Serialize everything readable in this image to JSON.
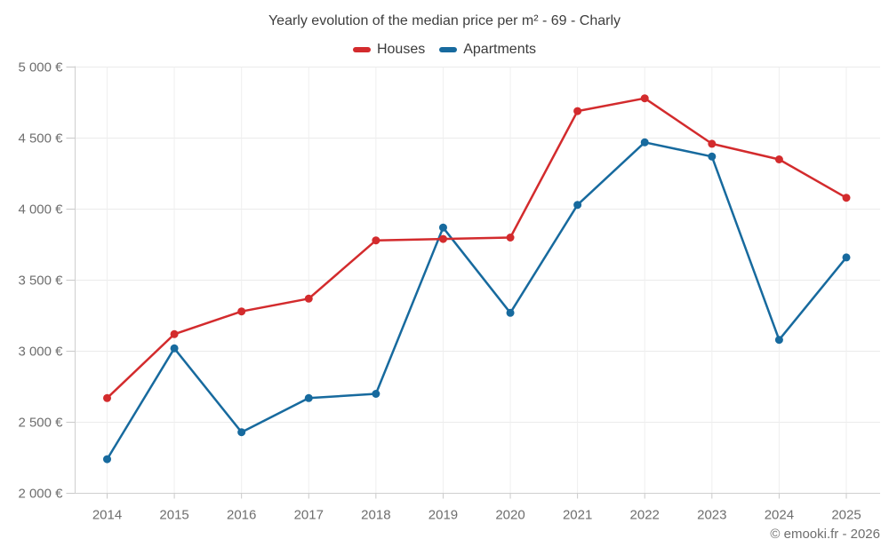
{
  "chart_data": {
    "type": "line",
    "title": "Yearly evolution of the median price per m² - 69 - Charly",
    "categories": [
      "2014",
      "2015",
      "2016",
      "2017",
      "2018",
      "2019",
      "2020",
      "2021",
      "2022",
      "2023",
      "2024",
      "2025"
    ],
    "series": [
      {
        "name": "Houses",
        "color": "#d32b2d",
        "values": [
          2670,
          3120,
          3280,
          3370,
          3780,
          3790,
          3800,
          4690,
          4780,
          4460,
          4350,
          4080
        ]
      },
      {
        "name": "Apartments",
        "color": "#176a9e",
        "values": [
          2240,
          3020,
          2430,
          2670,
          2700,
          3870,
          3270,
          4030,
          4470,
          4370,
          3080,
          3660
        ]
      }
    ],
    "ylim": [
      2000,
      5000
    ],
    "yticks": [
      {
        "value": 5000,
        "label": "5 000 €"
      },
      {
        "value": 4500,
        "label": "4 500 €"
      },
      {
        "value": 4000,
        "label": "4 000 €"
      },
      {
        "value": 3500,
        "label": "3 500 €"
      },
      {
        "value": 3000,
        "label": "3 000 €"
      },
      {
        "value": 2500,
        "label": "2 500 €"
      },
      {
        "value": 2000,
        "label": "2 000 €"
      }
    ],
    "xlabel": "",
    "ylabel": "",
    "grid": true,
    "legend_position": "top",
    "copyright": "© emooki.fr - 2026"
  }
}
